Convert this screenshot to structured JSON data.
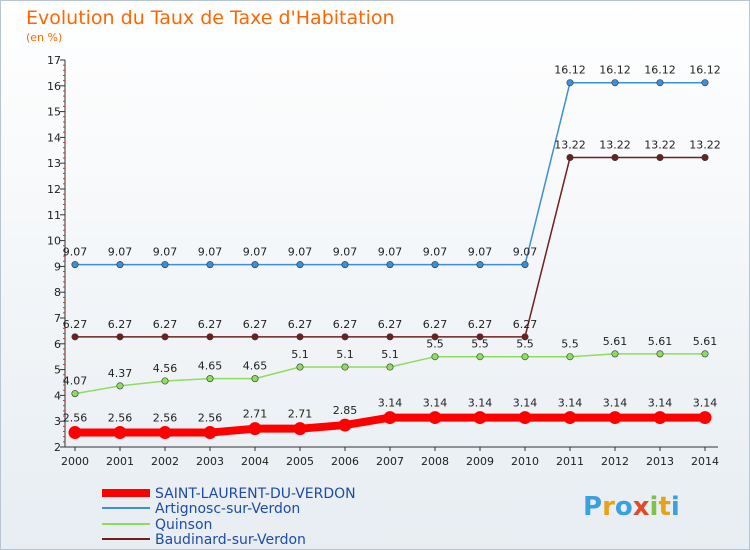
{
  "chart_data": {
    "type": "line",
    "title": "Evolution du Taux de Taxe d'Habitation",
    "unit_label": "(en %)",
    "x": [
      "2000",
      "2001",
      "2002",
      "2003",
      "2004",
      "2005",
      "2006",
      "2007",
      "2008",
      "2009",
      "2010",
      "2011",
      "2012",
      "2013",
      "2014"
    ],
    "y_ticks": [
      2,
      3,
      4,
      5,
      6,
      7,
      8,
      9,
      10,
      11,
      12,
      13,
      14,
      15,
      16,
      17
    ],
    "ylim": [
      2,
      17
    ],
    "grid": false,
    "legend_position": "bottom-left",
    "series": [
      {
        "name": "SAINT-LAURENT-DU-VERDON",
        "color": "#ff0000",
        "values": [
          2.56,
          2.56,
          2.56,
          2.56,
          2.71,
          2.71,
          2.85,
          3.14,
          3.14,
          3.14,
          3.14,
          3.14,
          3.14,
          3.14,
          3.14
        ],
        "labels": [
          "2.56",
          "2.56",
          "2.56",
          "2.56",
          "2.71",
          "2.71",
          "2.85",
          "3.14",
          "3.14",
          "3.14",
          "3.14",
          "3.14",
          "3.14",
          "3.14",
          "3.14"
        ]
      },
      {
        "name": "Artignosc-sur-Verdon",
        "color": "#3d8fd6",
        "values": [
          9.07,
          9.07,
          9.07,
          9.07,
          9.07,
          9.07,
          9.07,
          9.07,
          9.07,
          9.07,
          9.07,
          16.12,
          16.12,
          16.12,
          16.12
        ],
        "labels": [
          "9.07",
          "9.07",
          "9.07",
          "9.07",
          "9.07",
          "9.07",
          "9.07",
          "9.07",
          "9.07",
          "9.07",
          "9.07",
          "16.12",
          "16.12",
          "16.12",
          "16.12"
        ]
      },
      {
        "name": "Quinson",
        "color": "#8fdc60",
        "values": [
          4.07,
          4.37,
          4.56,
          4.65,
          4.65,
          5.1,
          5.1,
          5.1,
          5.5,
          5.5,
          5.5,
          5.5,
          5.61,
          5.61,
          5.61
        ],
        "labels": [
          "4.07",
          "4.37",
          "4.56",
          "4.65",
          "4.65",
          "5.1",
          "5.1",
          "5.1",
          "5.5",
          "5.5",
          "5.5",
          "5.5",
          "5.61",
          "5.61",
          "5.61"
        ]
      },
      {
        "name": "Baudinard-sur-Verdon",
        "color": "#6e2020",
        "values": [
          6.27,
          6.27,
          6.27,
          6.27,
          6.27,
          6.27,
          6.27,
          6.27,
          6.27,
          6.27,
          6.27,
          13.22,
          13.22,
          13.22,
          13.22
        ],
        "labels": [
          "6.27",
          "6.27",
          "6.27",
          "6.27",
          "6.27",
          "6.27",
          "6.27",
          "6.27",
          "6.27",
          "6.27",
          "6.27",
          "13.22",
          "13.22",
          "13.22",
          "13.22"
        ]
      }
    ]
  },
  "logo": {
    "text": "Proxiti"
  }
}
